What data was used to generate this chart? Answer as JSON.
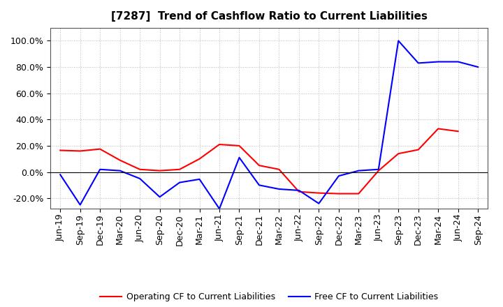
{
  "title": "[7287]  Trend of Cashflow Ratio to Current Liabilities",
  "x_labels": [
    "Jun-19",
    "Sep-19",
    "Dec-19",
    "Mar-20",
    "Jun-20",
    "Sep-20",
    "Dec-20",
    "Mar-21",
    "Jun-21",
    "Sep-21",
    "Dec-21",
    "Mar-22",
    "Jun-22",
    "Sep-22",
    "Dec-22",
    "Mar-23",
    "Jun-23",
    "Sep-23",
    "Dec-23",
    "Mar-24",
    "Jun-24",
    "Sep-24"
  ],
  "operating_cf": [
    16.5,
    16.0,
    17.5,
    9.0,
    2.0,
    1.0,
    2.0,
    10.0,
    21.0,
    20.0,
    5.0,
    2.0,
    -15.0,
    -16.0,
    -16.5,
    -16.5,
    1.0,
    14.0,
    17.0,
    33.0,
    31.0,
    null
  ],
  "free_cf": [
    -2.0,
    -25.0,
    2.0,
    1.0,
    -5.0,
    -19.0,
    -8.0,
    -5.5,
    -28.0,
    11.0,
    -10.0,
    -13.0,
    -14.0,
    -24.0,
    -3.0,
    1.0,
    2.0,
    100.0,
    83.0,
    84.0,
    84.0,
    80.0
  ],
  "ylim": [
    -28,
    110
  ],
  "yticks": [
    -20.0,
    0.0,
    20.0,
    40.0,
    60.0,
    80.0,
    100.0
  ],
  "operating_color": "#FF0000",
  "free_color": "#0000FF",
  "background_color": "#FFFFFF",
  "plot_bg_color": "#FFFFFF",
  "grid_color": "#BBBBBB",
  "legend_operating": "Operating CF to Current Liabilities",
  "legend_free": "Free CF to Current Liabilities",
  "title_fontsize": 11,
  "tick_fontsize": 9,
  "legend_fontsize": 9
}
